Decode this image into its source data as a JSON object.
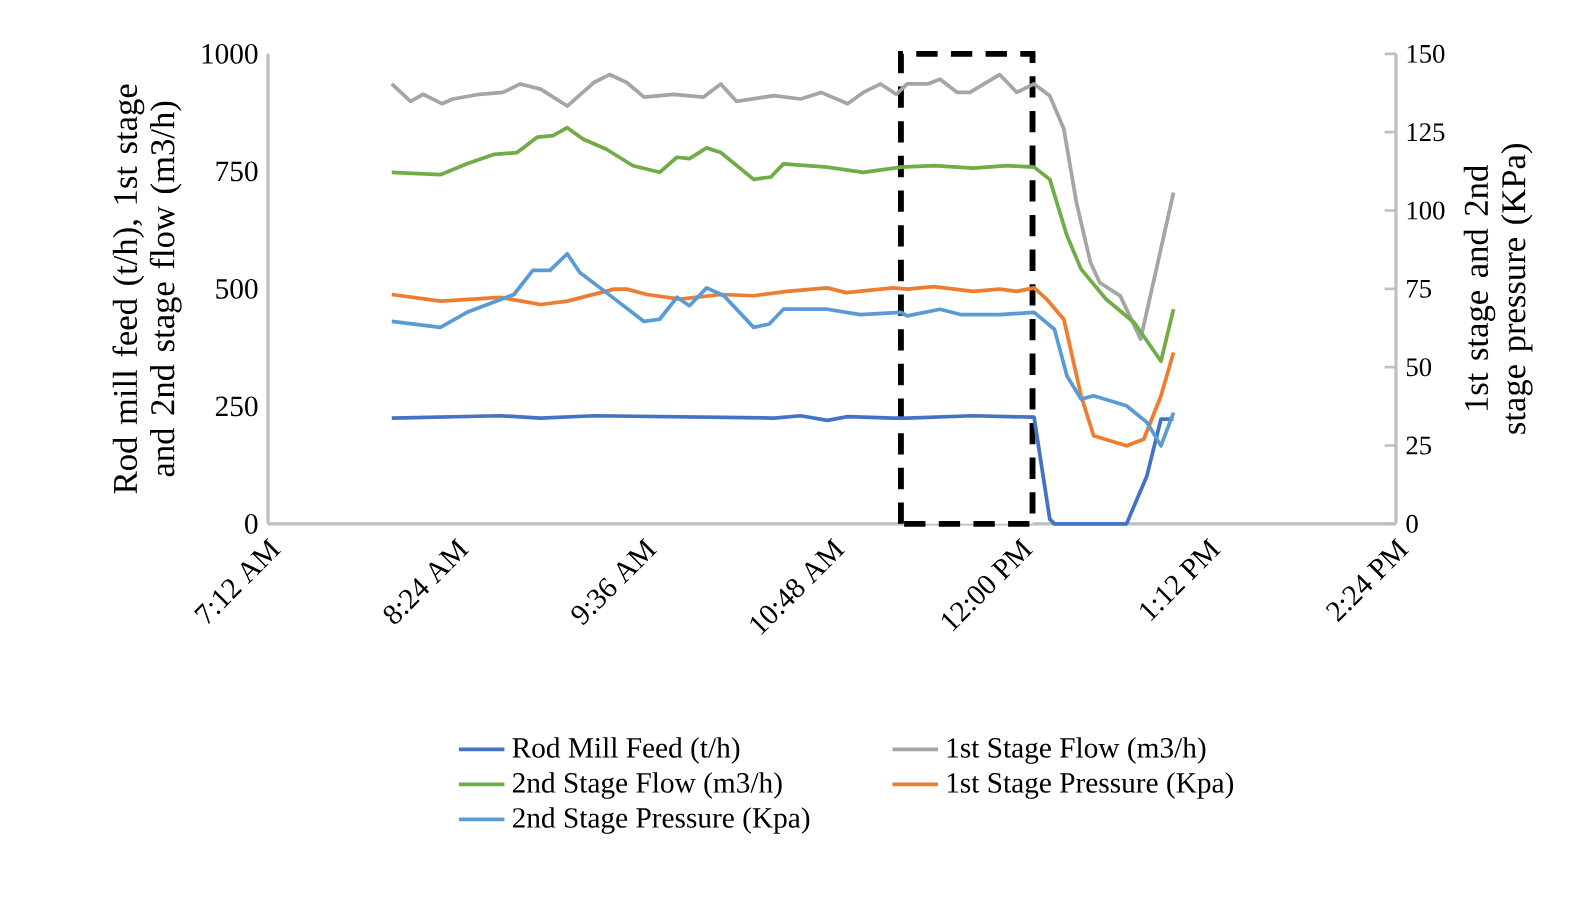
{
  "chart_data": {
    "type": "line",
    "ylabel": "Rod mill feed (t/h), 1st stage and 2nd stage flow (m3/h)",
    "y2label": "1st stage and 2nd stage pressure (KPa)",
    "xlim": [
      7.2,
      14.4
    ],
    "xticks": [
      {
        "value": 7.2,
        "label": "7:12 AM"
      },
      {
        "value": 8.4,
        "label": "8:24 AM"
      },
      {
        "value": 9.6,
        "label": "9:36 AM"
      },
      {
        "value": 10.8,
        "label": "10:48 AM"
      },
      {
        "value": 12.0,
        "label": "12:00 PM"
      },
      {
        "value": 13.2,
        "label": "1:12 PM"
      },
      {
        "value": 14.4,
        "label": "2:24 PM"
      }
    ],
    "ylim": [
      0,
      1000
    ],
    "yticks": [
      0,
      250,
      500,
      750,
      1000
    ],
    "y2lim": [
      0,
      150
    ],
    "y2ticks": [
      0,
      25,
      50,
      75,
      100,
      125,
      150
    ],
    "bands": [
      {
        "axis": "x",
        "from": 11.24,
        "to": 12.08,
        "color": "#000000"
      }
    ],
    "grid": false,
    "legend": "bottom",
    "marker": "none",
    "line_style": "solid",
    "series": [
      {
        "name": "Rod Mill Feed (t/h)",
        "color": "#4472c4",
        "x": [
          7.99,
          8.68,
          8.94,
          9.28,
          10.43,
          10.6,
          10.77,
          10.9,
          11.19,
          11.28,
          11.7,
          12.09,
          12.19,
          12.22,
          12.68,
          12.81,
          12.9,
          12.98
        ],
        "values": [
          225,
          230,
          225,
          230,
          225,
          230,
          220,
          228,
          225,
          225,
          230,
          227,
          10,
          0,
          0,
          102,
          223,
          223
        ]
      },
      {
        "name": "1st Stage Flow (m3/h)",
        "color": "#a5a5a5",
        "x": [
          7.99,
          8.11,
          8.19,
          8.31,
          8.38,
          8.55,
          8.7,
          8.81,
          8.94,
          9.11,
          9.28,
          9.38,
          9.49,
          9.6,
          9.79,
          9.98,
          10.09,
          10.19,
          10.43,
          10.6,
          10.73,
          10.9,
          11.0,
          11.11,
          11.21,
          11.28,
          11.41,
          11.49,
          11.6,
          11.68,
          11.87,
          11.98,
          12.09,
          12.19,
          12.28,
          12.36,
          12.45,
          12.51,
          12.64,
          12.77,
          12.98
        ],
        "values": [
          936,
          899,
          914,
          894,
          904,
          914,
          918,
          936,
          925,
          889,
          939,
          956,
          939,
          908,
          914,
          908,
          936,
          899,
          911,
          904,
          918,
          894,
          918,
          936,
          914,
          936,
          936,
          946,
          918,
          918,
          956,
          918,
          936,
          911,
          840,
          684,
          556,
          513,
          485,
          393,
          705
        ]
      },
      {
        "name": "2nd Stage Flow (m3/h)",
        "color": "#70ad47",
        "x": [
          7.99,
          8.3,
          8.47,
          8.64,
          8.79,
          8.92,
          9.02,
          9.11,
          9.21,
          9.36,
          9.53,
          9.7,
          9.81,
          9.89,
          10.0,
          10.09,
          10.3,
          10.41,
          10.49,
          10.77,
          11.0,
          11.24,
          11.45,
          11.7,
          11.92,
          12.09,
          12.19,
          12.3,
          12.39,
          12.55,
          12.73,
          12.9,
          12.98
        ],
        "values": [
          748,
          743,
          766,
          786,
          790,
          823,
          826,
          843,
          819,
          797,
          762,
          748,
          780,
          777,
          800,
          790,
          733,
          738,
          766,
          759,
          748,
          759,
          762,
          757,
          762,
          759,
          733,
          613,
          542,
          478,
          428,
          346,
          457
        ]
      },
      {
        "name": "1st Stage Pressure (Kpa)",
        "color": "#ed7d31",
        "axis": "y2",
        "x": [
          7.99,
          8.3,
          8.51,
          8.68,
          8.94,
          9.11,
          9.41,
          9.49,
          9.62,
          9.83,
          10.09,
          10.3,
          10.51,
          10.77,
          10.89,
          11.19,
          11.28,
          11.45,
          11.7,
          11.87,
          11.98,
          12.09,
          12.17,
          12.28,
          12.39,
          12.47,
          12.68,
          12.79,
          12.9,
          12.98
        ],
        "values": [
          73.2,
          71.1,
          71.7,
          72.3,
          70.0,
          71.1,
          74.9,
          74.9,
          73.2,
          71.7,
          73.2,
          72.8,
          74.2,
          75.3,
          73.8,
          75.3,
          74.9,
          75.7,
          74.2,
          74.9,
          74.2,
          75.3,
          71.7,
          65.3,
          40.9,
          28.1,
          24.9,
          27.0,
          40.9,
          54.7
        ]
      },
      {
        "name": "2nd Stage Pressure (Kpa)",
        "color": "#5b9bd5",
        "axis": "y2",
        "x": [
          7.99,
          8.3,
          8.47,
          8.77,
          8.89,
          9.0,
          9.11,
          9.19,
          9.36,
          9.6,
          9.7,
          9.81,
          9.89,
          10.0,
          10.11,
          10.3,
          10.4,
          10.49,
          10.77,
          10.98,
          11.24,
          11.28,
          11.49,
          11.62,
          11.87,
          12.09,
          12.22,
          12.3,
          12.39,
          12.47,
          12.68,
          12.81,
          12.9,
          12.98
        ],
        "values": [
          64.6,
          62.7,
          67.5,
          73.2,
          80.9,
          80.9,
          86.2,
          80.2,
          73.8,
          64.6,
          65.3,
          72.3,
          69.6,
          75.3,
          72.8,
          62.7,
          63.8,
          68.5,
          68.5,
          66.8,
          67.5,
          66.4,
          68.5,
          66.8,
          66.8,
          67.5,
          62.1,
          47.2,
          39.8,
          40.9,
          37.7,
          32.4,
          24.9,
          35.5
        ]
      }
    ]
  }
}
